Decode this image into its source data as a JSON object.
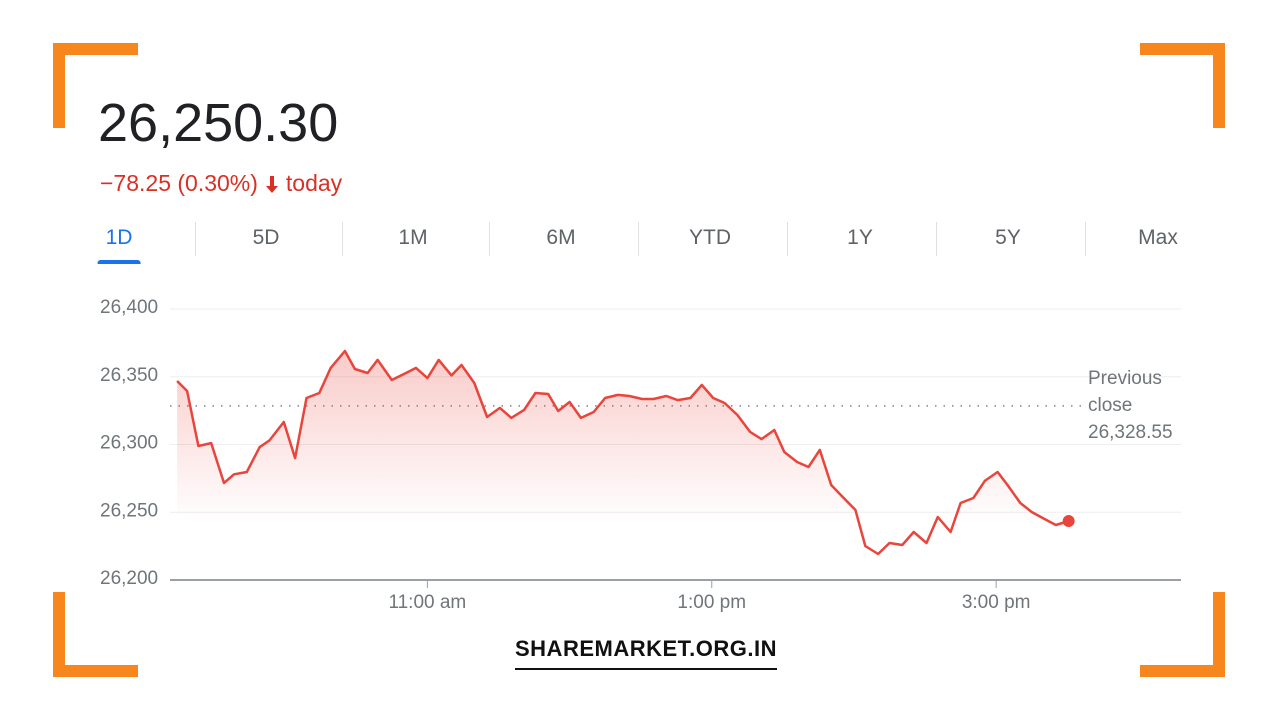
{
  "quote": {
    "price": "26,250.30",
    "change": "−78.25 (0.30%)",
    "period": "today"
  },
  "ranges": [
    "1D",
    "5D",
    "1M",
    "6M",
    "YTD",
    "1Y",
    "5Y",
    "Max"
  ],
  "selected_range": 0,
  "watermark": "SHAREMARKET.ORG.IN",
  "chart_data": {
    "type": "line",
    "color": "#e8453c",
    "x": [
      9.24,
      9.31,
      9.39,
      9.48,
      9.57,
      9.64,
      9.73,
      9.82,
      9.89,
      9.99,
      10.07,
      10.15,
      10.24,
      10.32,
      10.42,
      10.49,
      10.58,
      10.65,
      10.75,
      10.85,
      10.92,
      11.0,
      11.08,
      11.17,
      11.24,
      11.33,
      11.42,
      11.51,
      11.59,
      11.68,
      11.76,
      11.85,
      11.92,
      12.0,
      12.08,
      12.17,
      12.25,
      12.34,
      12.42,
      12.51,
      12.59,
      12.68,
      12.76,
      12.85,
      12.93,
      13.01,
      13.09,
      13.18,
      13.27,
      13.35,
      13.44,
      13.51,
      13.6,
      13.68,
      13.76,
      13.84,
      13.92,
      14.01,
      14.08,
      14.17,
      14.25,
      14.34,
      14.42,
      14.51,
      14.59,
      14.68,
      14.75,
      14.84,
      14.92,
      15.01,
      15.08,
      15.17,
      15.25,
      15.34,
      15.42,
      15.51
    ],
    "values": [
      26346.9,
      26339.5,
      26298.9,
      26301,
      26271.6,
      26278,
      26279.7,
      26298,
      26303,
      26316.6,
      26290,
      26334.3,
      26338,
      26356.5,
      26369,
      26355.7,
      26352.8,
      26362.4,
      26347.6,
      26352.8,
      26356.5,
      26349,
      26362.4,
      26351,
      26358.7,
      26345.4,
      26320.3,
      26327,
      26319.6,
      26325.5,
      26338,
      26337.3,
      26324.7,
      26331.4,
      26319.6,
      26324,
      26334.3,
      26336.6,
      26335.8,
      26333.6,
      26333.6,
      26335.8,
      26332.8,
      26334.3,
      26344,
      26334.3,
      26330.6,
      26321.8,
      26309.2,
      26304,
      26310.7,
      26294.5,
      26287.1,
      26283.4,
      26296,
      26270.1,
      26261.3,
      26251.7,
      26225.1,
      26219.2,
      26227.3,
      26225.8,
      26235.4,
      26227.3,
      26246.5,
      26235.4,
      26256.8,
      26260.5,
      26273.1,
      26279.7,
      26270.1,
      26256.8,
      26250.2,
      26245,
      26240.6,
      26243.5
    ],
    "xlim": [
      9.19,
      16.3
    ],
    "ylim": [
      26200,
      26400
    ],
    "xticks": [
      {
        "value": 11,
        "label": "11:00 am"
      },
      {
        "value": 13,
        "label": "1:00 pm"
      },
      {
        "value": 15,
        "label": "3:00 pm"
      }
    ],
    "yticks": [
      {
        "value": 26200,
        "label": "26,200"
      },
      {
        "value": 26250,
        "label": "26,250"
      },
      {
        "value": 26300,
        "label": "26,300"
      },
      {
        "value": 26350,
        "label": "26,350"
      },
      {
        "value": 26400,
        "label": "26,400"
      }
    ],
    "grid": true,
    "previous_close": {
      "label": "Previous close",
      "value": 26328.55,
      "value_label": "26,328.55"
    }
  }
}
